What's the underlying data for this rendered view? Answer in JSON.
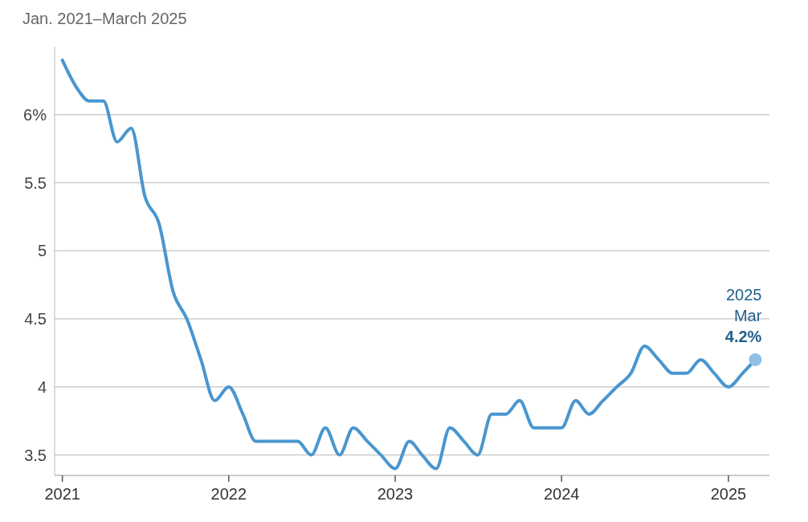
{
  "chart_data": {
    "type": "line",
    "subtitle": "Jan. 2021–March 2025",
    "x": [
      "2021-01",
      "2021-02",
      "2021-03",
      "2021-04",
      "2021-05",
      "2021-06",
      "2021-07",
      "2021-08",
      "2021-09",
      "2021-10",
      "2021-11",
      "2021-12",
      "2022-01",
      "2022-02",
      "2022-03",
      "2022-04",
      "2022-05",
      "2022-06",
      "2022-07",
      "2022-08",
      "2022-09",
      "2022-10",
      "2022-11",
      "2022-12",
      "2023-01",
      "2023-02",
      "2023-03",
      "2023-04",
      "2023-05",
      "2023-06",
      "2023-07",
      "2023-08",
      "2023-09",
      "2023-10",
      "2023-11",
      "2023-12",
      "2024-01",
      "2024-02",
      "2024-03",
      "2024-04",
      "2024-05",
      "2024-06",
      "2024-07",
      "2024-08",
      "2024-09",
      "2024-10",
      "2024-11",
      "2024-12",
      "2025-01",
      "2025-02",
      "2025-03"
    ],
    "series": [
      {
        "color": "#4a96cf",
        "values": [
          6.4,
          6.2,
          6.1,
          6.1,
          5.8,
          5.9,
          5.4,
          5.2,
          4.7,
          4.5,
          4.2,
          3.9,
          4.0,
          3.8,
          3.6,
          3.6,
          3.6,
          3.6,
          3.5,
          3.7,
          3.5,
          3.7,
          3.6,
          3.5,
          3.4,
          3.6,
          3.5,
          3.4,
          3.7,
          3.6,
          3.5,
          3.8,
          3.8,
          3.9,
          3.7,
          3.7,
          3.7,
          3.9,
          3.8,
          3.9,
          4.0,
          4.1,
          4.3,
          4.2,
          4.1,
          4.1,
          4.2,
          4.1,
          4.0,
          4.1,
          4.2
        ]
      }
    ],
    "xlim": [
      "2020-12-15",
      "2025-04-01"
    ],
    "xticks": [
      {
        "value": "2021-01",
        "label": "2021"
      },
      {
        "value": "2022-01",
        "label": "2022"
      },
      {
        "value": "2023-01",
        "label": "2023"
      },
      {
        "value": "2024-01",
        "label": "2024"
      },
      {
        "value": "2025-01",
        "label": "2025"
      }
    ],
    "ylim": [
      3.35,
      6.5
    ],
    "yticks": [
      3.5,
      4,
      4.5,
      5,
      5.5,
      {
        "value": 6,
        "label": "6%"
      }
    ],
    "grid": "y",
    "marker": "none",
    "line_style": "solid",
    "annotations": [
      {
        "text": "2025\nMar\n4.2%",
        "x": "2025-03",
        "y": 4.2
      }
    ]
  }
}
